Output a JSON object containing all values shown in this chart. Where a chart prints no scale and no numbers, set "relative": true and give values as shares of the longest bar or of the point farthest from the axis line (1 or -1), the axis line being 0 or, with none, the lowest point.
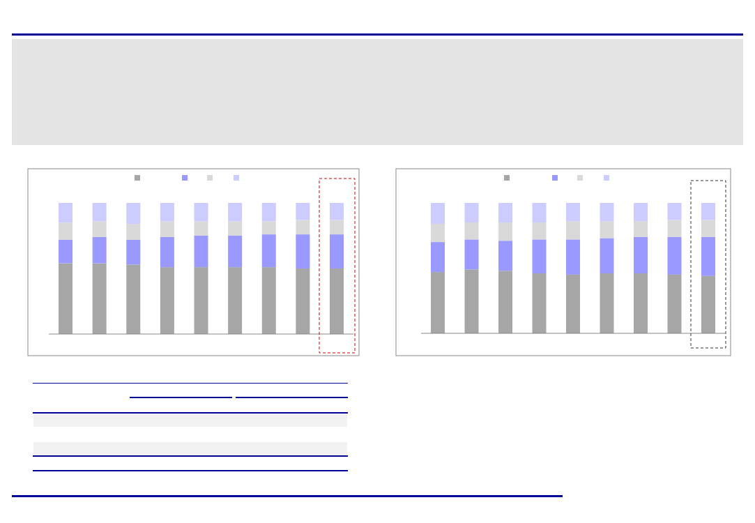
{
  "chart_data": [
    {
      "type": "bar",
      "stacked": true,
      "relative": true,
      "categories": [
        null,
        null,
        null,
        null,
        null,
        null,
        null,
        null,
        null
      ],
      "series": [
        {
          "color": "#a6a6a6",
          "values": [
            0.54,
            0.54,
            0.53,
            0.51,
            0.51,
            0.51,
            0.51,
            0.5,
            0.5
          ]
        },
        {
          "color": "#9999ff",
          "values": [
            0.18,
            0.2,
            0.19,
            0.23,
            0.24,
            0.24,
            0.25,
            0.26,
            0.26
          ]
        },
        {
          "color": "#d9d9d9",
          "values": [
            0.13,
            0.12,
            0.12,
            0.12,
            0.11,
            0.11,
            0.1,
            0.11,
            0.11
          ]
        },
        {
          "color": "#ccccff",
          "values": [
            0.15,
            0.14,
            0.16,
            0.14,
            0.14,
            0.14,
            0.14,
            0.13,
            0.13
          ]
        }
      ]
    },
    {
      "type": "bar",
      "stacked": true,
      "relative": true,
      "categories": [
        null,
        null,
        null,
        null,
        null,
        null,
        null,
        null,
        null
      ],
      "series": [
        {
          "color": "#a6a6a6",
          "values": [
            0.47,
            0.49,
            0.48,
            0.46,
            0.45,
            0.46,
            0.46,
            0.45,
            0.44
          ]
        },
        {
          "color": "#9999ff",
          "values": [
            0.23,
            0.23,
            0.23,
            0.26,
            0.27,
            0.27,
            0.28,
            0.29,
            0.3
          ]
        },
        {
          "color": "#d9d9d9",
          "values": [
            0.14,
            0.13,
            0.14,
            0.13,
            0.14,
            0.13,
            0.12,
            0.13,
            0.13
          ]
        },
        {
          "color": "#ccccff",
          "values": [
            0.16,
            0.15,
            0.15,
            0.15,
            0.14,
            0.14,
            0.14,
            0.13,
            0.13
          ]
        }
      ]
    }
  ]
}
